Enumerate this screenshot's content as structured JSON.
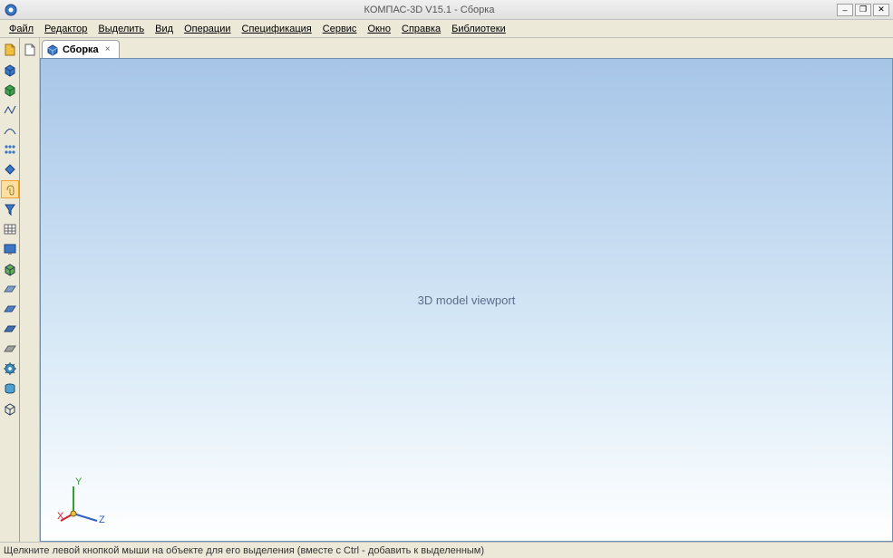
{
  "titlebar": {
    "title": "КОМПАС-3D V15.1 - Сборка",
    "app_icon_color": "#3b78c4"
  },
  "menus": [
    "Файл",
    "Редактор",
    "Выделить",
    "Вид",
    "Операции",
    "Спецификация",
    "Сервис",
    "Окно",
    "Справка",
    "Библиотеки"
  ],
  "tab": {
    "label": "Сборка",
    "close": "×"
  },
  "statusbar": {
    "text": "Щелкните левой кнопкой мыши на объекте для его выделения (вместе с Ctrl - добавить к выделенным)"
  },
  "viewport": {
    "bg_top": "#a7c5e8",
    "bg_mid": "#d9eaf7",
    "bg_bottom": "#ffffff",
    "border": "#7090b0",
    "triad": {
      "x_color": "#d02030",
      "y_color": "#30a030",
      "z_color": "#3060c0",
      "x_label": "X",
      "y_label": "Y",
      "z_label": "Z"
    },
    "model_note": "3D model viewport"
  },
  "left_toolbar1": [
    {
      "name": "create-part-icon",
      "fill": "#f0c040",
      "stroke": "#a07020",
      "shape": "doc"
    },
    {
      "name": "box-blue-icon",
      "fill": "#3b78c4",
      "stroke": "#1a4080",
      "shape": "cube"
    },
    {
      "name": "box-green-icon",
      "fill": "#40a050",
      "stroke": "#206030",
      "shape": "cube"
    },
    {
      "name": "path-icon",
      "fill": "#3b78c4",
      "stroke": "#1a4080",
      "shape": "zig"
    },
    {
      "name": "curve-icon",
      "fill": "#3b78c4",
      "stroke": "#1a4080",
      "shape": "curve"
    },
    {
      "name": "dots-icon",
      "fill": "#3b78c4",
      "stroke": "#1a4080",
      "shape": "dots"
    },
    {
      "name": "diamond-icon",
      "fill": "#3b78c4",
      "stroke": "#1a4080",
      "shape": "diamond"
    },
    {
      "name": "clip-icon",
      "fill": "#d8d070",
      "stroke": "#908030",
      "shape": "clip",
      "active": true
    },
    {
      "name": "funnel-icon",
      "fill": "#3b78c4",
      "stroke": "#1a4080",
      "shape": "funnel"
    },
    {
      "name": "table-icon",
      "fill": "#ffffff",
      "stroke": "#606060",
      "shape": "grid"
    },
    {
      "name": "screen-icon",
      "fill": "#3b78c4",
      "stroke": "#1a4080",
      "shape": "screen"
    },
    {
      "name": "box-corner-icon",
      "fill": "#60b050",
      "stroke": "#2a3a5a",
      "shape": "cube"
    },
    {
      "name": "plane1-icon",
      "fill": "#80a0c0",
      "stroke": "#40608a",
      "shape": "plane"
    },
    {
      "name": "plane2-icon",
      "fill": "#5080c0",
      "stroke": "#2a4a80",
      "shape": "plane"
    },
    {
      "name": "plane3-icon",
      "fill": "#4070b0",
      "stroke": "#204070",
      "shape": "plane"
    },
    {
      "name": "plane-grey-icon",
      "fill": "#a0a0a0",
      "stroke": "#606060",
      "shape": "plane"
    },
    {
      "name": "gear-icon",
      "fill": "#4090c0",
      "stroke": "#205070",
      "shape": "gear"
    },
    {
      "name": "cylinder-icon",
      "fill": "#50a0d0",
      "stroke": "#205070",
      "shape": "cyl"
    },
    {
      "name": "box-wire-icon",
      "fill": "none",
      "stroke": "#2a3a5a",
      "shape": "cube"
    }
  ],
  "left_toolbar2": [
    {
      "name": "page-corner-icon",
      "fill": "#ffffff",
      "stroke": "#606060",
      "shape": "doc"
    }
  ]
}
